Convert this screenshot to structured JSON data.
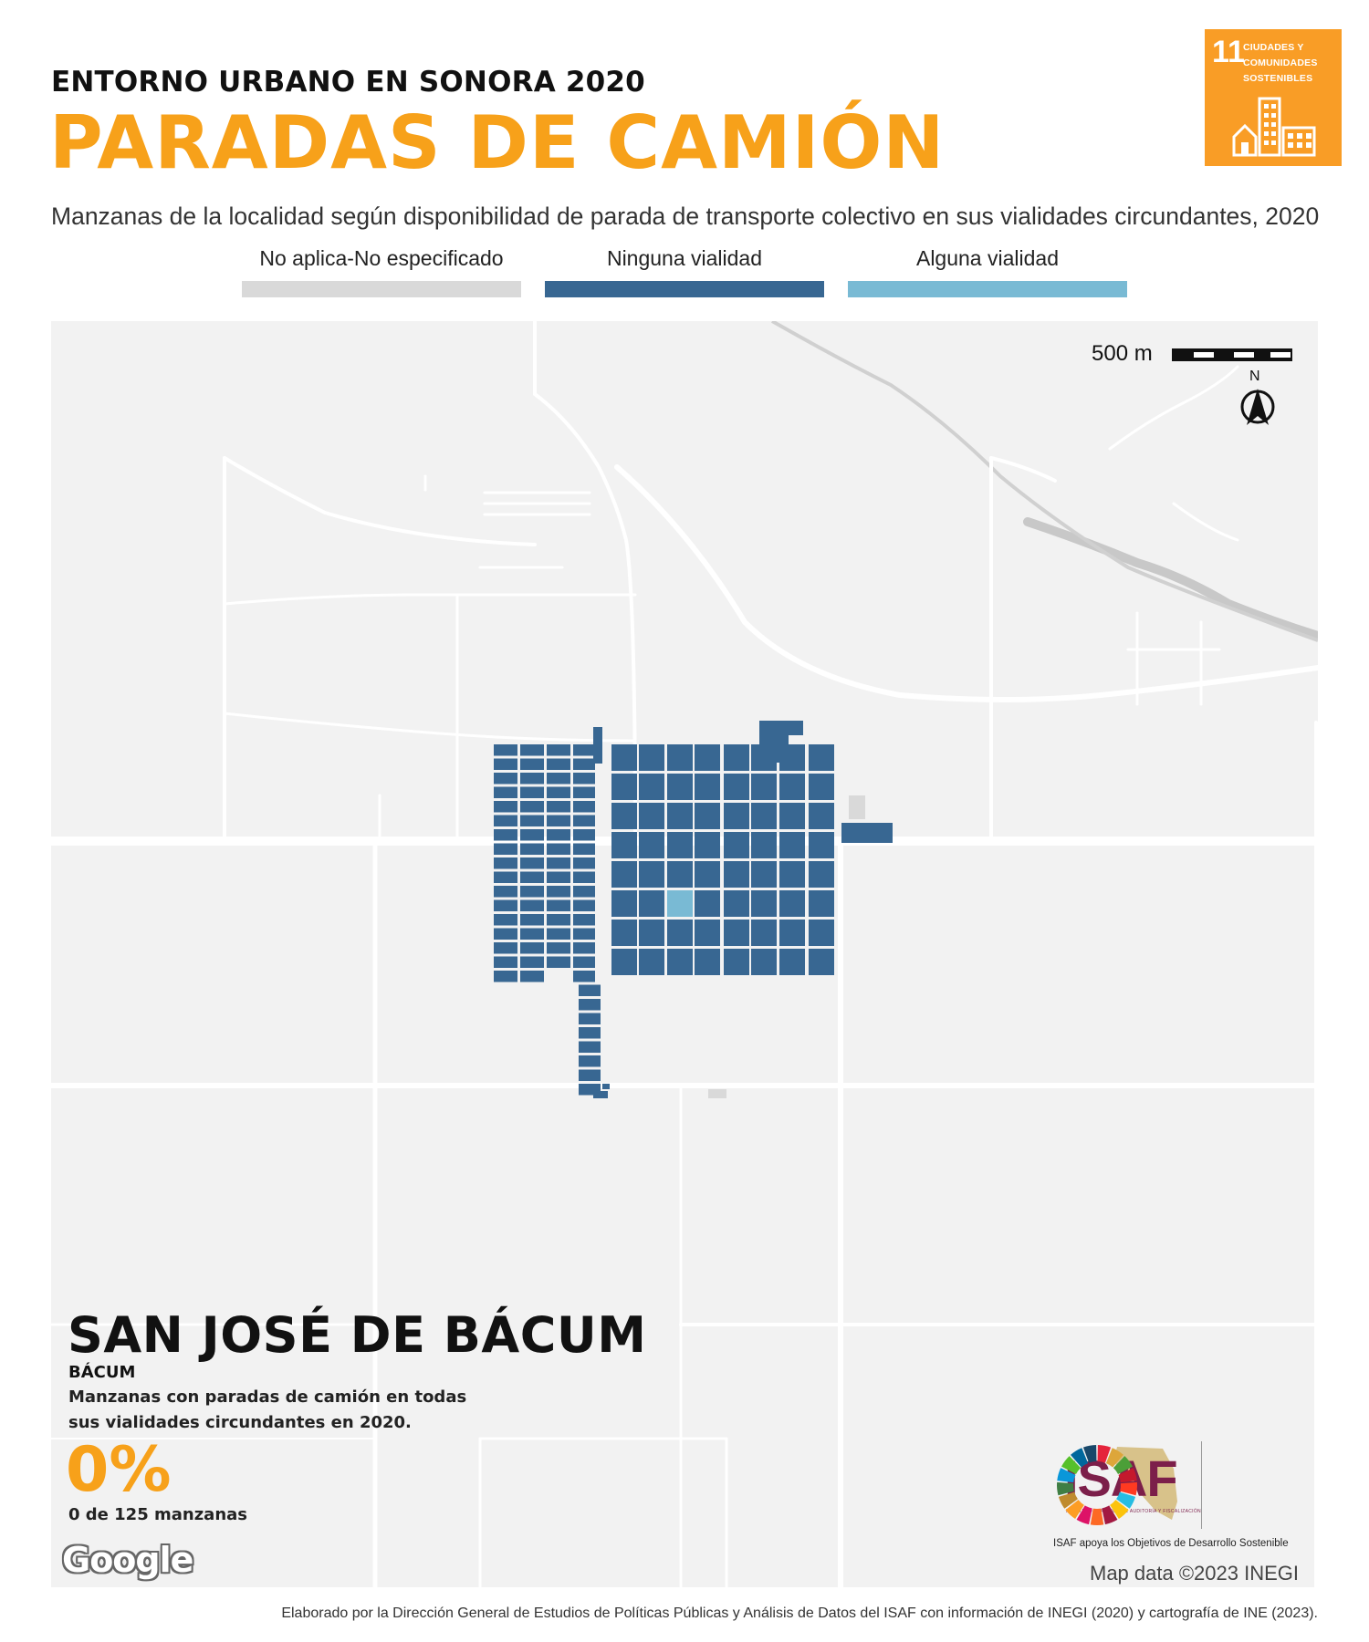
{
  "header": {
    "pretitle": "ENTORNO URBANO EN SONORA 2020",
    "title": "PARADAS DE CAMIÓN",
    "subtitle": "Manzanas de la localidad según disponibilidad de parada de transporte colectivo en sus vialidades circundantes, 2020"
  },
  "sdg_badge": {
    "number": "11",
    "text_lines": [
      "CIUDADES Y",
      "COMUNIDADES",
      "SOSTENIBLES"
    ],
    "color": "#F99D26",
    "icon": "city-buildings-icon"
  },
  "legend": [
    {
      "label": "No aplica-No especificado",
      "color": "#d9d9d9"
    },
    {
      "label": "Ninguna vialidad",
      "color": "#386792"
    },
    {
      "label": "Alguna vialidad",
      "color": "#79bad4"
    }
  ],
  "map": {
    "scale_label": "500 m",
    "north_label": "N",
    "background": "#f2f2f2",
    "road_color": "#ffffff",
    "river_color": "#c8c8c8"
  },
  "place": {
    "name": "SAN JOSÉ DE BÁCUM",
    "municipality": "BÁCUM",
    "description": "Manzanas con paradas de camión en todas sus vialidades circundantes en 2020.",
    "percent": "0%",
    "count_text": "0 de 125 manzanas"
  },
  "attribution": {
    "google": "Google",
    "map_data": "Map data ©2023 INEGI"
  },
  "isaf": {
    "logo_text": "ISAF",
    "logo_subtext": "INSTITUTO SUPERIOR DE AUDITORÍA Y FISCALIZACIÓN",
    "caption": "ISAF apoya los Objetivos de Desarrollo Sostenible",
    "brand_color": "#7C1F4A"
  },
  "footer": "Elaborado por la Dirección General de Estudios de Políticas Públicas y Análisis de Datos del ISAF con información de INEGI (2020) y cartografía de INE (2023)."
}
